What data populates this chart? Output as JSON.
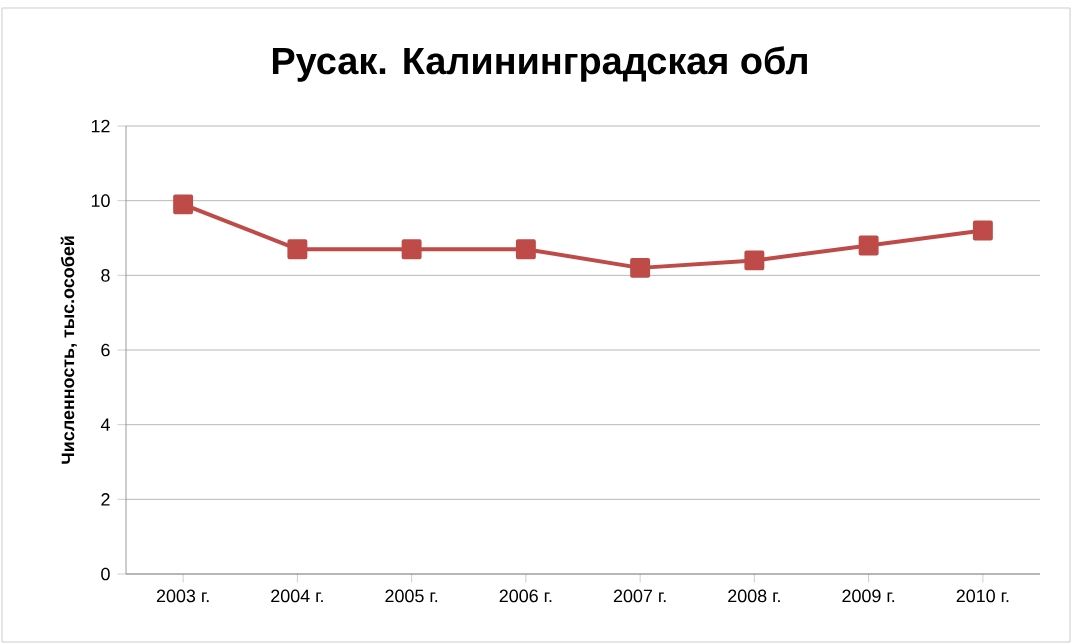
{
  "chart_data": {
    "type": "line",
    "title": "Русак. Калининградская обл",
    "ylabel": "Численность, тыс.особей",
    "categories": [
      "2003 г.",
      "2004 г.",
      "2005 г.",
      "2006 г.",
      "2007 г.",
      "2008 г.",
      "2009 г.",
      "2010 г."
    ],
    "series": [
      {
        "color": "#be4b48",
        "values": [
          9.9,
          8.7,
          8.7,
          8.7,
          8.2,
          8.4,
          8.8,
          9.2
        ]
      }
    ],
    "ylim": [
      0,
      12
    ],
    "yticks": [
      0,
      2,
      4,
      6,
      8,
      10,
      12
    ],
    "grid": "y",
    "marker": "square",
    "line_style": "solid"
  }
}
